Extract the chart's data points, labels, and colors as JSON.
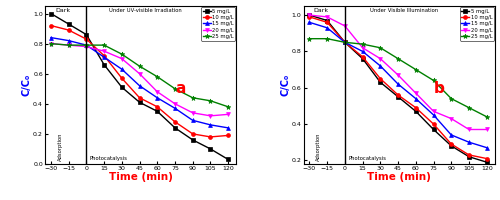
{
  "panel_a": {
    "title": "a",
    "xlabel": "Time (min)",
    "ylabel": "C/C₀",
    "dark_label": "Dark",
    "light_label": "Under UV-visible Irradiation",
    "adsorption_label": "Adsorption",
    "photocatalysis_label": "Photocatalysis",
    "x": [
      -30,
      -15,
      0,
      15,
      30,
      45,
      60,
      75,
      90,
      105,
      120
    ],
    "series": [
      {
        "label": "5 mg/L",
        "color": "#000000",
        "marker": "s",
        "y": [
          1.0,
          0.93,
          0.86,
          0.66,
          0.51,
          0.41,
          0.35,
          0.24,
          0.16,
          0.1,
          0.03
        ]
      },
      {
        "label": "10 mg/L",
        "color": "#ff0000",
        "marker": "o",
        "y": [
          0.92,
          0.89,
          0.83,
          0.72,
          0.57,
          0.44,
          0.38,
          0.28,
          0.2,
          0.18,
          0.19
        ]
      },
      {
        "label": "15 mg/L",
        "color": "#0000ff",
        "marker": "^",
        "y": [
          0.84,
          0.82,
          0.79,
          0.71,
          0.63,
          0.52,
          0.44,
          0.37,
          0.29,
          0.26,
          0.24
        ]
      },
      {
        "label": "20 mg/L",
        "color": "#ff00ff",
        "marker": "v",
        "y": [
          0.8,
          0.79,
          0.78,
          0.75,
          0.7,
          0.6,
          0.48,
          0.4,
          0.34,
          0.32,
          0.33
        ]
      },
      {
        "label": "25 mg/L",
        "color": "#008000",
        "marker": "*",
        "y": [
          0.8,
          0.79,
          0.79,
          0.79,
          0.73,
          0.65,
          0.58,
          0.5,
          0.44,
          0.42,
          0.38
        ]
      }
    ],
    "ylim": [
      0.0,
      1.05
    ],
    "yticks": [
      0.0,
      0.2,
      0.4,
      0.6,
      0.8,
      1.0
    ],
    "xlim": [
      -35,
      127
    ],
    "xticks": [
      -30,
      -15,
      0,
      15,
      30,
      45,
      60,
      75,
      90,
      105,
      120
    ]
  },
  "panel_b": {
    "title": "b",
    "xlabel": "Time (min)",
    "ylabel": "C/C₀",
    "dark_label": "Dark",
    "light_label": "Under Visible Illumination",
    "adsorption_label": "Adsorption",
    "photocatalysis_label": "Photocatalysis",
    "x": [
      -30,
      -15,
      0,
      15,
      30,
      45,
      60,
      75,
      90,
      105,
      120
    ],
    "series": [
      {
        "label": "5 mg/L",
        "color": "#000000",
        "marker": "s",
        "y": [
          1.0,
          0.97,
          0.85,
          0.76,
          0.63,
          0.55,
          0.47,
          0.37,
          0.28,
          0.22,
          0.19
        ]
      },
      {
        "label": "10 mg/L",
        "color": "#ff0000",
        "marker": "o",
        "y": [
          0.99,
          0.96,
          0.85,
          0.77,
          0.65,
          0.56,
          0.49,
          0.4,
          0.29,
          0.23,
          0.21
        ]
      },
      {
        "label": "15 mg/L",
        "color": "#0000ff",
        "marker": "^",
        "y": [
          0.96,
          0.93,
          0.85,
          0.8,
          0.72,
          0.62,
          0.54,
          0.45,
          0.34,
          0.3,
          0.27
        ]
      },
      {
        "label": "20 mg/L",
        "color": "#ff00ff",
        "marker": "v",
        "y": [
          1.0,
          0.99,
          0.94,
          0.82,
          0.76,
          0.67,
          0.57,
          0.47,
          0.43,
          0.37,
          0.37
        ]
      },
      {
        "label": "25 mg/L",
        "color": "#008000",
        "marker": "*",
        "y": [
          0.87,
          0.87,
          0.85,
          0.84,
          0.82,
          0.76,
          0.7,
          0.64,
          0.54,
          0.49,
          0.44
        ]
      }
    ],
    "ylim": [
      0.18,
      1.05
    ],
    "yticks": [
      0.2,
      0.4,
      0.6,
      0.8,
      1.0
    ],
    "xlim": [
      -35,
      127
    ],
    "xticks": [
      -30,
      -15,
      0,
      15,
      30,
      45,
      60,
      75,
      90,
      105,
      120
    ]
  }
}
